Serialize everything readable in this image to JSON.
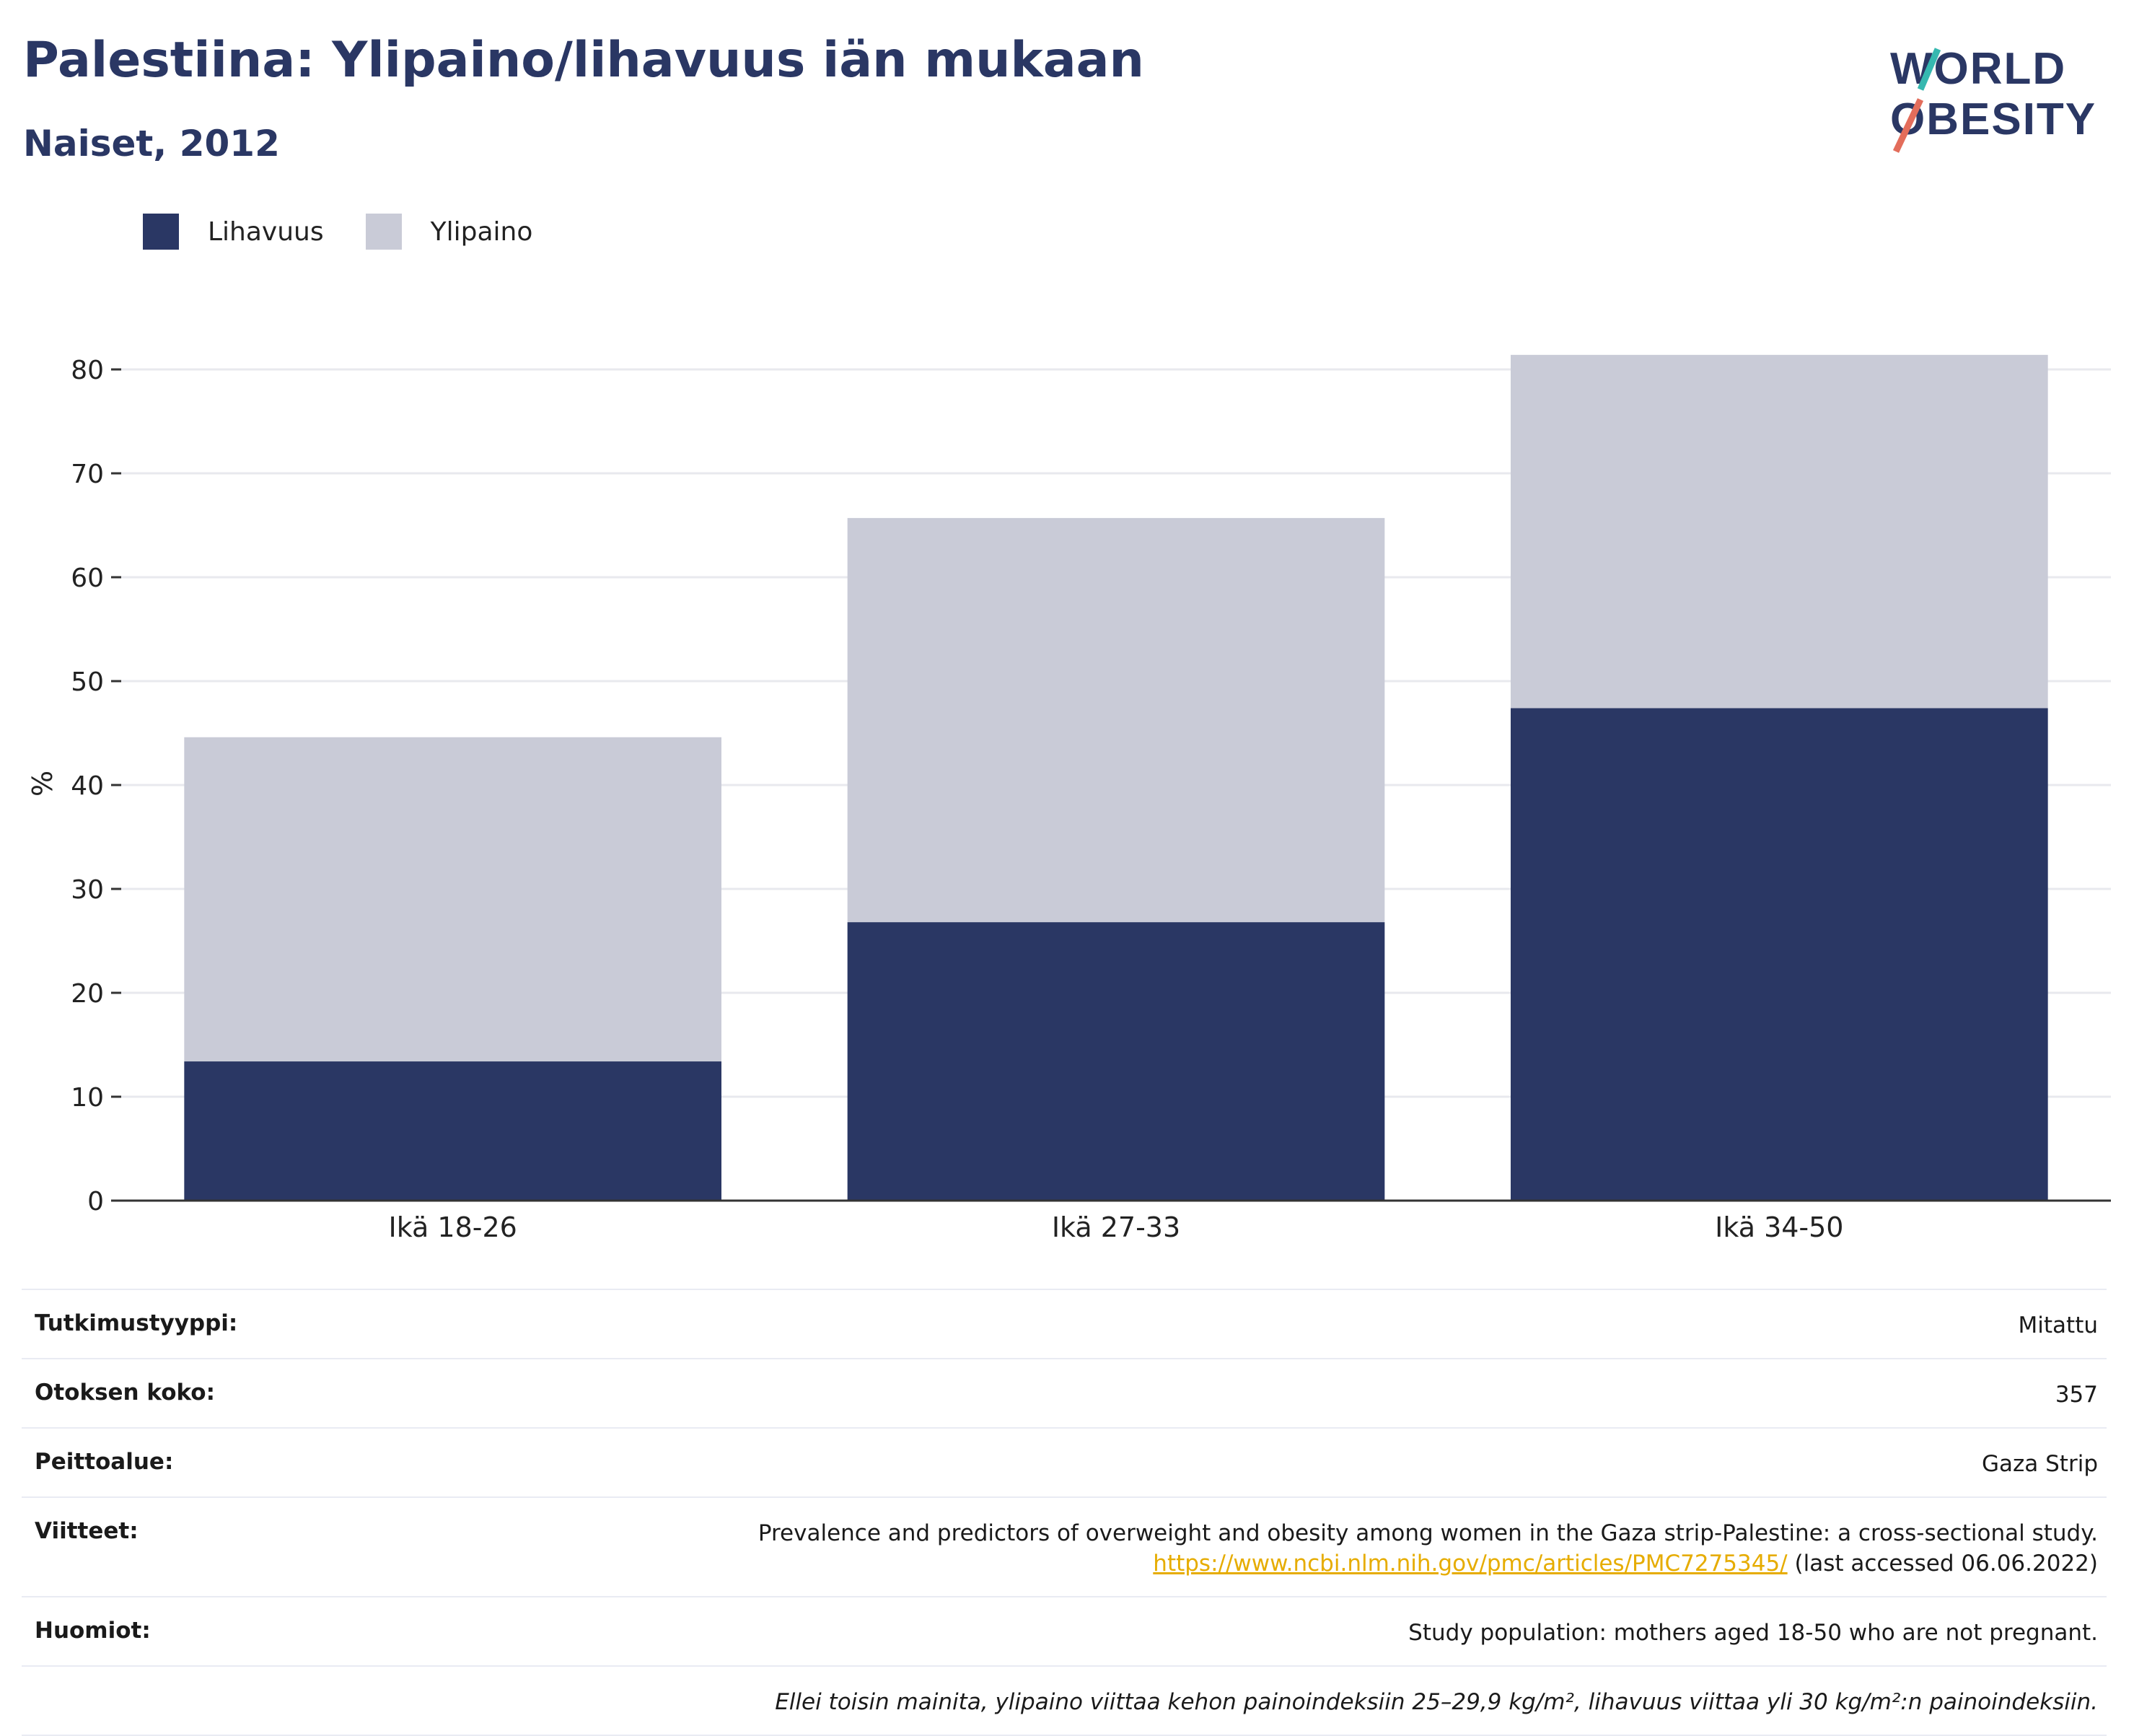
{
  "header": {
    "title": "Palestiina: Ylipaino/lihavuus iän mukaan",
    "subtitle": "Naiset, 2012",
    "logo_line1": "WORLD",
    "logo_line2": "OBESITY"
  },
  "legend": {
    "items": [
      {
        "label": "Lihavuus",
        "color": "#2a3764"
      },
      {
        "label": "Ylipaino",
        "color": "#c9cbd7"
      }
    ]
  },
  "chart_data": {
    "type": "bar",
    "stacked": true,
    "categories": [
      "Ikä 18-26",
      "Ikä 27-33",
      "Ikä 34-50"
    ],
    "series": [
      {
        "name": "Lihavuus",
        "values": [
          13.4,
          26.8,
          47.4
        ],
        "color": "#2a3764"
      },
      {
        "name": "Ylipaino",
        "values": [
          31.2,
          38.9,
          34.0
        ],
        "color": "#c9cbd7"
      }
    ],
    "ylabel": "%",
    "ylim": [
      0,
      85
    ],
    "yticks": [
      0,
      10,
      20,
      30,
      40,
      50,
      60,
      70,
      80
    ],
    "grid": true,
    "legend_position": "top-left"
  },
  "info": {
    "rows": [
      {
        "key": "Tutkimustyyppi:",
        "value": "Mitattu"
      },
      {
        "key": "Otoksen koko:",
        "value": "357"
      },
      {
        "key": "Peittoalue:",
        "value": "Gaza Strip"
      }
    ],
    "references_key": "Viitteet:",
    "references_text": "Prevalence and predictors of overweight and obesity among women in the Gaza strip-Palestine: a cross-sectional study.",
    "references_link": "https://www.ncbi.nlm.nih.gov/pmc/articles/PMC7275345/",
    "references_accessed": "(last accessed 06.06.2022)",
    "notes_key": "Huomiot:",
    "notes_value": "Study population: mothers aged 18-50 who are not pregnant.",
    "footnote": "Ellei toisin mainita, ylipaino viittaa kehon painoindeksiin 25–29,9 kg/m², lihavuus viittaa yli 30 kg/m²:n painoindeksiin."
  }
}
